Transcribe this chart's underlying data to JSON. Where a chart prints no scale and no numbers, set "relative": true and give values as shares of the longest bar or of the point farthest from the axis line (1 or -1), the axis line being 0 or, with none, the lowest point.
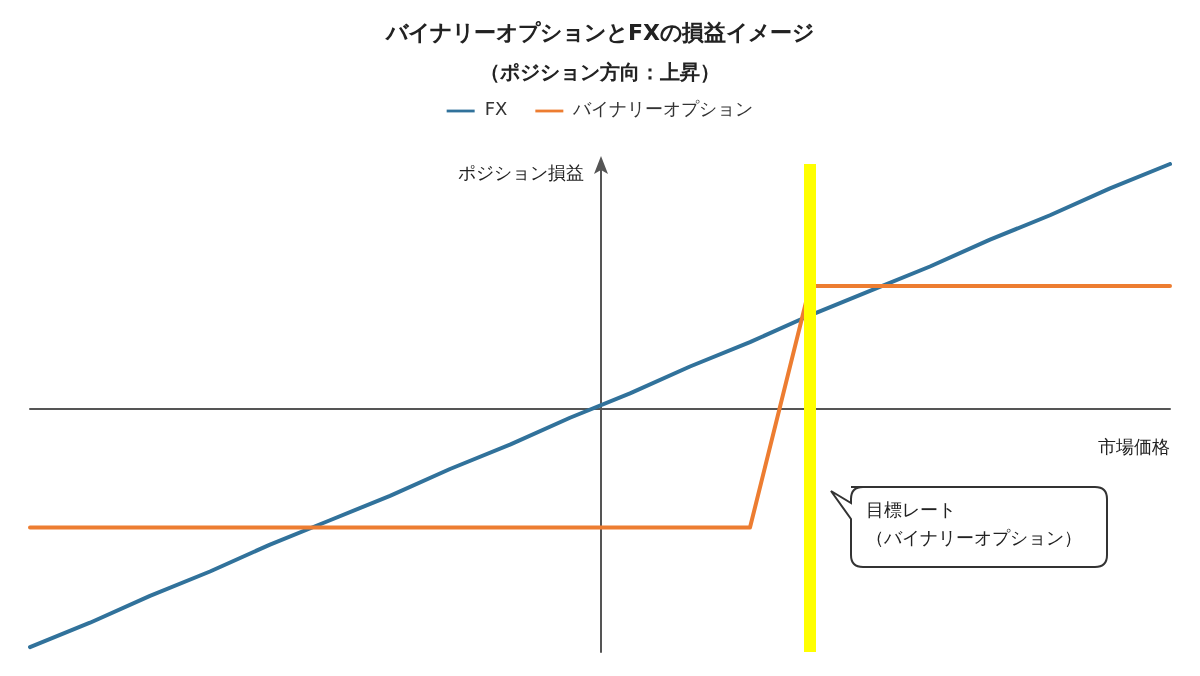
{
  "chart_data": {
    "type": "line",
    "title": "バイナリーオプションとFXの損益イメージ",
    "subtitle": "（ポジション方向：上昇）",
    "xlabel": "市場価格",
    "ylabel": "ポジション損益",
    "relative": true,
    "grid": false,
    "legend": "top",
    "marker": "none",
    "line_style": "solid",
    "categories": [
      null,
      null,
      null,
      null,
      null,
      null,
      null,
      null,
      null,
      null,
      null,
      null,
      null,
      null,
      null,
      null,
      null,
      null,
      null,
      null
    ],
    "series": [
      {
        "name": "FX",
        "color": "#31729b",
        "values": [
          -0.98,
          -0.88,
          -0.77,
          -0.67,
          -0.56,
          -0.46,
          -0.36,
          -0.25,
          -0.15,
          -0.04,
          0.06,
          0.17,
          0.27,
          0.38,
          0.48,
          0.58,
          0.69,
          0.79,
          0.9,
          1
        ]
      },
      {
        "name": "バイナリーオプション",
        "color": "#ed7d31",
        "values": [
          -0.49,
          -0.49,
          -0.49,
          -0.49,
          -0.49,
          -0.49,
          -0.49,
          -0.49,
          -0.49,
          -0.49,
          -0.49,
          -0.49,
          -0.49,
          0.5,
          0.5,
          0.5,
          0.5,
          0.5,
          0.5,
          0.5
        ]
      }
    ],
    "annotations": [
      "目標レート",
      "（バイナリーオプション）"
    ]
  }
}
